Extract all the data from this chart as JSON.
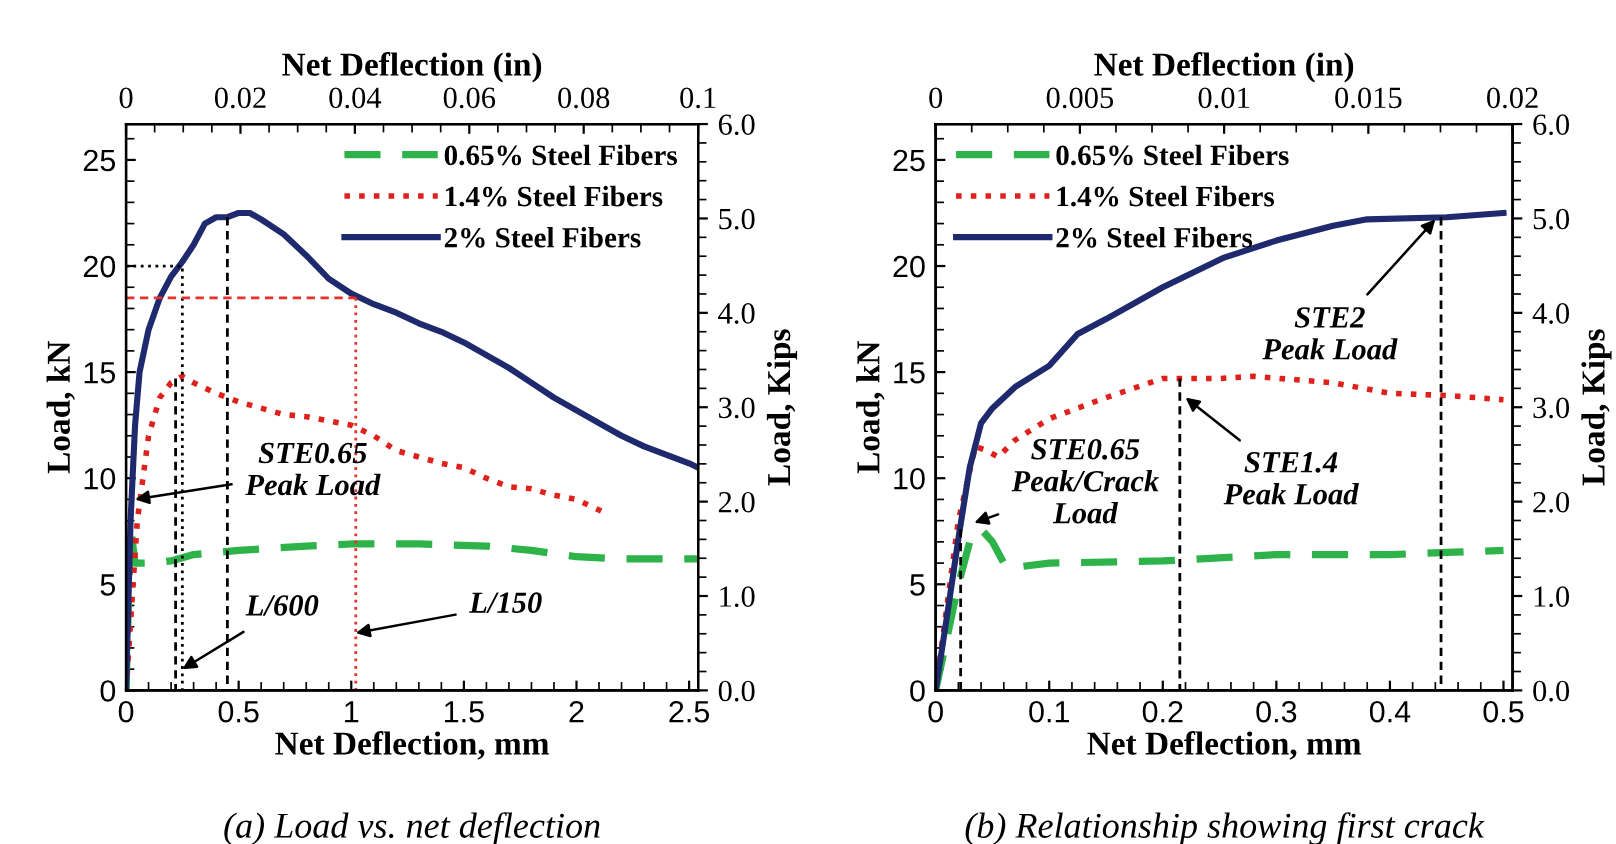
{
  "chart_data": [
    {
      "type": "line",
      "xlabel": "Net Deflection, mm",
      "ylabel": "Load, kN",
      "x2label": "Net Deflection (in)",
      "y2label": "Load, Kips",
      "xlim": [
        0,
        2.54
      ],
      "xticks": [
        0,
        0.5,
        1,
        1.5,
        2,
        2.5
      ],
      "ylim": [
        0,
        26.69
      ],
      "yticks": [
        0,
        5,
        10,
        15,
        20,
        25
      ],
      "x2lim": [
        0,
        0.1
      ],
      "x2ticks": [
        0,
        0.02,
        0.04,
        0.06,
        0.08,
        0.1
      ],
      "y2lim": [
        0,
        6
      ],
      "y2ticks": [
        {
          "value": 0,
          "label": "0.0"
        },
        {
          "value": 1,
          "label": "1.0"
        },
        {
          "value": 2,
          "label": "2.0"
        },
        {
          "value": 3,
          "label": "3.0"
        },
        {
          "value": 4,
          "label": "4.0"
        },
        {
          "value": 5,
          "label": "5.0"
        },
        {
          "value": 6,
          "label": "6.0"
        }
      ],
      "legend": "top right",
      "grid": false,
      "marker": "none",
      "series": [
        {
          "name": "0.65% Steel Fibers",
          "color": "#2db34a",
          "line_style": "dashed",
          "x": [
            0,
            0.02,
            0.04,
            0.1,
            0.2,
            0.3,
            0.5,
            0.8,
            1.0,
            1.3,
            1.6,
            1.8,
            2.0,
            2.2,
            2.54
          ],
          "values": [
            0,
            7.7,
            6.0,
            6.0,
            6.1,
            6.4,
            6.6,
            6.8,
            6.9,
            6.9,
            6.8,
            6.6,
            6.3,
            6.2,
            6.2
          ]
        },
        {
          "name": "1.4% Steel Fibers",
          "color": "#e0201b",
          "line_style": "dotted",
          "x": [
            0,
            0.05,
            0.1,
            0.15,
            0.2,
            0.25,
            0.3,
            0.4,
            0.5,
            0.6,
            0.7,
            0.8,
            0.9,
            1.0,
            1.1,
            1.2,
            1.3,
            1.4,
            1.5,
            1.6,
            1.7,
            1.8,
            1.9,
            2.0,
            2.1,
            2.14
          ],
          "values": [
            0,
            8,
            12,
            13.8,
            14.5,
            14.8,
            14.5,
            14.0,
            13.6,
            13.3,
            13.0,
            12.9,
            12.7,
            12.5,
            12.0,
            11.3,
            11.0,
            10.7,
            10.5,
            10.0,
            9.6,
            9.5,
            9.2,
            9.0,
            8.5,
            8.3
          ]
        },
        {
          "name": "2% Steel Fibers",
          "color": "#1f2a6e",
          "line_style": "solid",
          "x": [
            0,
            0.02,
            0.04,
            0.06,
            0.1,
            0.15,
            0.2,
            0.25,
            0.3,
            0.35,
            0.4,
            0.45,
            0.5,
            0.55,
            0.6,
            0.7,
            0.8,
            0.9,
            1.0,
            1.1,
            1.2,
            1.3,
            1.4,
            1.5,
            1.6,
            1.7,
            1.8,
            1.9,
            2.0,
            2.1,
            2.2,
            2.3,
            2.4,
            2.5,
            2.54
          ],
          "values": [
            0,
            8,
            12.5,
            15,
            17,
            18.5,
            19.5,
            20.2,
            21,
            22,
            22.3,
            22.3,
            22.5,
            22.5,
            22.2,
            21.5,
            20.5,
            19.4,
            18.7,
            18.2,
            17.8,
            17.3,
            16.9,
            16.4,
            15.8,
            15.2,
            14.5,
            13.8,
            13.2,
            12.6,
            12.0,
            11.5,
            11.1,
            10.7,
            10.5
          ]
        },
        {
          "color": "#000000",
          "line_style": "dashed",
          "x": [
            0.22,
            0.22
          ],
          "values": [
            14.7,
            0
          ]
        },
        {
          "color": "#000000",
          "line_style": "dotted",
          "x": [
            0,
            0.25,
            0.25
          ],
          "values": [
            20,
            20,
            0
          ]
        },
        {
          "color": "#000000",
          "line_style": "dashed",
          "x": [
            0.45,
            0.45
          ],
          "values": [
            22.3,
            0
          ]
        },
        {
          "color": "#e8312a",
          "line_style": "dashed",
          "x": [
            0,
            1.02
          ],
          "values": [
            18.5,
            18.5
          ]
        },
        {
          "color": "#e8312a",
          "line_style": "dotted",
          "x": [
            1.02,
            1.02
          ],
          "values": [
            18.5,
            0
          ]
        }
      ],
      "annotations": [
        {
          "text": "STE0.65\nPeak Load",
          "x": 0.04,
          "y": 9.0
        },
        {
          "text": "L/600",
          "x": 0.25,
          "y": 1.0
        },
        {
          "text": "L/150",
          "x": 1.02,
          "y": 2.7
        },
        "(a) Load vs. net deflection"
      ]
    },
    {
      "type": "line",
      "xlabel": "Net Deflection, mm",
      "ylabel": "Load, kN",
      "x2label": "Net Deflection (in)",
      "y2label": "Load, Kips",
      "xlim": [
        0,
        0.508
      ],
      "xticks": [
        0,
        0.1,
        0.2,
        0.3,
        0.4,
        0.5
      ],
      "ylim": [
        0,
        26.69
      ],
      "yticks": [
        0,
        5,
        10,
        15,
        20,
        25
      ],
      "x2lim": [
        0,
        0.02
      ],
      "x2ticks": [
        0,
        0.005,
        0.01,
        0.015,
        0.02
      ],
      "y2lim": [
        0,
        6
      ],
      "y2ticks": [
        {
          "value": 0,
          "label": "0.0"
        },
        {
          "value": 1,
          "label": "1.0"
        },
        {
          "value": 2,
          "label": "2.0"
        },
        {
          "value": 3,
          "label": "3.0"
        },
        {
          "value": 4,
          "label": "4.0"
        },
        {
          "value": 5,
          "label": "5.0"
        },
        {
          "value": 6,
          "label": "6.0"
        }
      ],
      "legend": "top left",
      "grid": false,
      "marker": "none",
      "series": [
        {
          "name": "0.65% Steel Fibers",
          "color": "#2db34a",
          "line_style": "dashed",
          "x": [
            0,
            0.02,
            0.03,
            0.04,
            0.05,
            0.06,
            0.07,
            0.1,
            0.2,
            0.3,
            0.4,
            0.45,
            0.5
          ],
          "values": [
            0,
            5,
            7,
            7.6,
            7,
            6.0,
            5.8,
            6.0,
            6.1,
            6.4,
            6.4,
            6.5,
            6.6
          ]
        },
        {
          "name": "1.4% Steel Fibers",
          "color": "#e0201b",
          "line_style": "dotted",
          "x": [
            0,
            0.02,
            0.035,
            0.045,
            0.055,
            0.07,
            0.1,
            0.15,
            0.2,
            0.25,
            0.28,
            0.35,
            0.4,
            0.45,
            0.5
          ],
          "values": [
            0,
            8,
            11.5,
            11.3,
            11.0,
            11.8,
            12.8,
            13.8,
            14.7,
            14.7,
            14.8,
            14.5,
            14.0,
            13.9,
            13.7
          ]
        },
        {
          "name": "2% Steel Fibers",
          "color": "#1f2a6e",
          "line_style": "solid",
          "x": [
            0,
            0.01,
            0.021,
            0.03,
            0.04,
            0.05,
            0.07,
            0.1,
            0.125,
            0.15,
            0.2,
            0.254,
            0.3,
            0.35,
            0.38,
            0.45,
            0.5
          ],
          "values": [
            0,
            3.5,
            7.5,
            10.5,
            12.6,
            13.3,
            14.3,
            15.3,
            16.8,
            17.5,
            19.0,
            20.4,
            21.2,
            21.9,
            22.2,
            22.3,
            22.5
          ]
        },
        {
          "color": "#000000",
          "line_style": "dashed",
          "x": [
            0.022,
            0.022
          ],
          "values": [
            7.6,
            0
          ]
        },
        {
          "color": "#000000",
          "line_style": "dashed",
          "x": [
            0.215,
            0.215
          ],
          "values": [
            14.7,
            0
          ]
        },
        {
          "color": "#000000",
          "line_style": "dashed",
          "x": [
            0.445,
            0.445
          ],
          "values": [
            22.3,
            0
          ]
        }
      ],
      "annotations": [
        {
          "text": "STE2\nPeak Load",
          "x": 0.44,
          "y": 22.2
        },
        {
          "text": "STE1.4\nPeak Load",
          "x": 0.22,
          "y": 13.8
        },
        {
          "text": "STE0.65\nPeak/Crack\nLoad",
          "x": 0.034,
          "y": 7.9
        },
        "(b) Relationship showing first crack"
      ]
    }
  ]
}
